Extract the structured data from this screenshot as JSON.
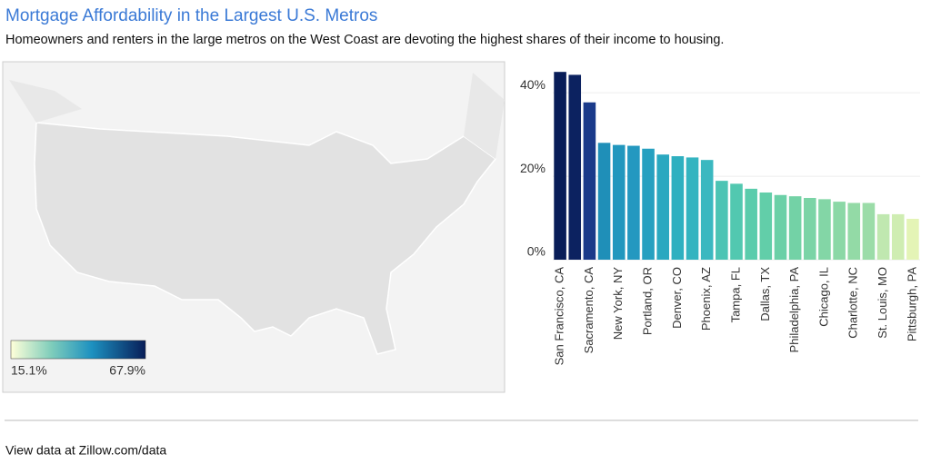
{
  "title": "Mortgage Affordability in the Largest U.S. Metros",
  "subtitle": "Homeowners and renters in the large metros on the West Coast are devoting the highest shares of their income to housing.",
  "map": {
    "colorbar": {
      "min_label": "15.1%",
      "max_label": "67.9%"
    }
  },
  "footer": "View data at Zillow.com/data",
  "chart_data": {
    "type": "bar",
    "categories": [
      "San Francisco, CA",
      null,
      "Sacramento, CA",
      null,
      "New York, NY",
      null,
      "Portland, OR",
      null,
      "Denver, CO",
      null,
      "Phoenix, AZ",
      null,
      "Tampa, FL",
      null,
      "Dallas, TX",
      null,
      "Philadelphia, PA",
      null,
      "Chicago, IL",
      null,
      "Charlotte, NC",
      null,
      "St. Louis, MO",
      null,
      "Pittsburgh, PA"
    ],
    "values": [
      45,
      44.3,
      37.7,
      28,
      27.5,
      27.3,
      26.6,
      25.2,
      24.8,
      24.5,
      23.9,
      18.9,
      18.2,
      17,
      16.1,
      15.5,
      15.2,
      14.8,
      14.5,
      13.9,
      13.6,
      13.6,
      10.9,
      10.9,
      9.8
    ],
    "colors": [
      "#081d58",
      "#0c2260",
      "#1a3a8a",
      "#1f8fb8",
      "#2197be",
      "#2498c0",
      "#26a0c0",
      "#2aa8c0",
      "#2fb0c0",
      "#34b4c0",
      "#3bb8c0",
      "#4cc4b4",
      "#52c8b0",
      "#5accac",
      "#62cea9",
      "#6bd0a7",
      "#73d2a6",
      "#7bd4a6",
      "#83d6a6",
      "#8bd8a6",
      "#93daa6",
      "#9bdca8",
      "#c0e8b0",
      "#cfedb2",
      "#e4f4b6"
    ],
    "ylim": [
      0,
      47
    ],
    "yticks": [
      {
        "value": 0,
        "label": "0%"
      },
      {
        "value": 20,
        "label": "20%"
      },
      {
        "value": 40,
        "label": "40%"
      }
    ],
    "grid": true
  }
}
